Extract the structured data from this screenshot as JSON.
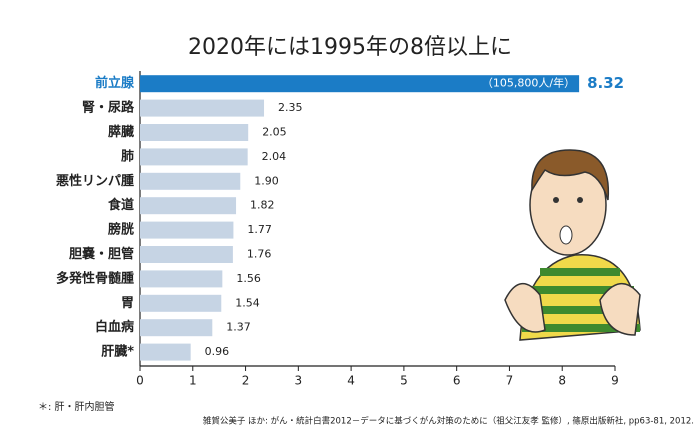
{
  "chart_data": {
    "type": "barh",
    "title": "2020年には1995年の8倍以上に",
    "categories": [
      "前立腺",
      "腎・尿路",
      "膵臓",
      "肺",
      "悪性リンパ腫",
      "食道",
      "膀胱",
      "胆嚢・胆管",
      "多発性骨髄腫",
      "胃",
      "白血病",
      "肝臓*"
    ],
    "values": [
      8.32,
      2.35,
      2.05,
      2.04,
      1.9,
      1.82,
      1.77,
      1.76,
      1.56,
      1.54,
      1.37,
      0.96
    ],
    "value_labels": [
      "8.32",
      "2.35",
      "2.05",
      "2.04",
      "1.90",
      "1.82",
      "1.77",
      "1.76",
      "1.56",
      "1.54",
      "1.37",
      "0.96"
    ],
    "colors": [
      "#1b7cc6",
      "#c6d4e4",
      "#c6d4e4",
      "#c6d4e4",
      "#c6d4e4",
      "#c6d4e4",
      "#c6d4e4",
      "#c6d4e4",
      "#c6d4e4",
      "#c6d4e4",
      "#c6d4e4",
      "#c6d4e4"
    ],
    "bar_annotation": "（105,800人/年）",
    "xlim": [
      0,
      9
    ],
    "xticks": [
      0,
      1,
      2,
      3,
      4,
      5,
      6,
      7,
      8,
      9
    ],
    "footnote": "＊: 肝・肝内胆管",
    "source": "雑賀公美子 ほか: がん・統計白書2012－データに基づくがん対策のために（祖父江友孝 監修）, 篠原出版新社, pp63-81, 2012."
  }
}
